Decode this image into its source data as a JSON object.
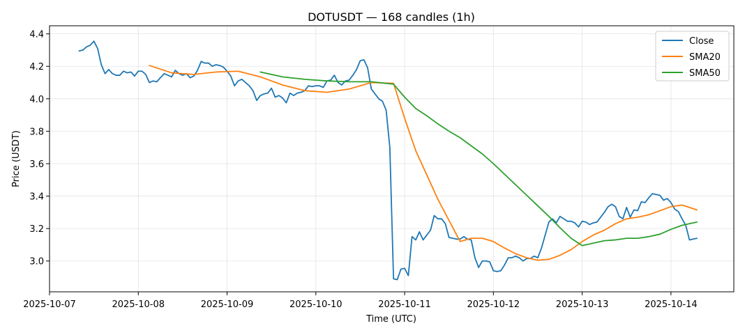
{
  "chart_data": {
    "type": "line",
    "title": "DOTUSDT — 168 candles (1h)",
    "xlabel": "Time (UTC)",
    "ylabel": "Price (USDT)",
    "ylim": [
      2.81,
      4.45
    ],
    "xlim": [
      "2025-10-07T00:00",
      "2025-10-14T17:00"
    ],
    "grid": true,
    "legend_position": "top-right",
    "x_ticks": [
      "2025-10-07",
      "2025-10-08",
      "2025-10-09",
      "2025-10-10",
      "2025-10-11",
      "2025-10-12",
      "2025-10-13",
      "2025-10-14"
    ],
    "y_ticks": [
      3.0,
      3.2,
      3.4,
      3.6,
      3.8,
      4.0,
      4.2,
      4.4
    ],
    "series": [
      {
        "name": "Close",
        "color": "#1f77b4",
        "x": [
          "2025-10-07T08:00",
          "2025-10-07T09:00",
          "2025-10-07T10:00",
          "2025-10-07T11:00",
          "2025-10-07T12:00",
          "2025-10-07T13:00",
          "2025-10-07T14:00",
          "2025-10-07T15:00",
          "2025-10-07T16:00",
          "2025-10-07T17:00",
          "2025-10-07T18:00",
          "2025-10-07T19:00",
          "2025-10-07T20:00",
          "2025-10-07T21:00",
          "2025-10-07T22:00",
          "2025-10-07T23:00",
          "2025-10-08T00:00",
          "2025-10-08T01:00",
          "2025-10-08T02:00",
          "2025-10-08T03:00",
          "2025-10-08T04:00",
          "2025-10-08T05:00",
          "2025-10-08T06:00",
          "2025-10-08T07:00",
          "2025-10-08T08:00",
          "2025-10-08T09:00",
          "2025-10-08T10:00",
          "2025-10-08T11:00",
          "2025-10-08T12:00",
          "2025-10-08T13:00",
          "2025-10-08T14:00",
          "2025-10-08T15:00",
          "2025-10-08T16:00",
          "2025-10-08T17:00",
          "2025-10-08T18:00",
          "2025-10-08T19:00",
          "2025-10-08T20:00",
          "2025-10-08T21:00",
          "2025-10-08T22:00",
          "2025-10-08T23:00",
          "2025-10-09T00:00",
          "2025-10-09T01:00",
          "2025-10-09T02:00",
          "2025-10-09T03:00",
          "2025-10-09T04:00",
          "2025-10-09T05:00",
          "2025-10-09T06:00",
          "2025-10-09T07:00",
          "2025-10-09T08:00",
          "2025-10-09T09:00",
          "2025-10-09T10:00",
          "2025-10-09T11:00",
          "2025-10-09T12:00",
          "2025-10-09T13:00",
          "2025-10-09T14:00",
          "2025-10-09T15:00",
          "2025-10-09T16:00",
          "2025-10-09T17:00",
          "2025-10-09T18:00",
          "2025-10-09T19:00",
          "2025-10-09T20:00",
          "2025-10-09T21:00",
          "2025-10-09T22:00",
          "2025-10-09T23:00",
          "2025-10-10T00:00",
          "2025-10-10T01:00",
          "2025-10-10T02:00",
          "2025-10-10T03:00",
          "2025-10-10T04:00",
          "2025-10-10T05:00",
          "2025-10-10T06:00",
          "2025-10-10T07:00",
          "2025-10-10T08:00",
          "2025-10-10T09:00",
          "2025-10-10T10:00",
          "2025-10-10T11:00",
          "2025-10-10T12:00",
          "2025-10-10T13:00",
          "2025-10-10T14:00",
          "2025-10-10T15:00",
          "2025-10-10T16:00",
          "2025-10-10T17:00",
          "2025-10-10T18:00",
          "2025-10-10T19:00",
          "2025-10-10T20:00",
          "2025-10-10T21:00",
          "2025-10-10T22:00",
          "2025-10-10T23:00",
          "2025-10-11T00:00",
          "2025-10-11T01:00",
          "2025-10-11T02:00",
          "2025-10-11T03:00",
          "2025-10-11T04:00",
          "2025-10-11T05:00",
          "2025-10-11T06:00",
          "2025-10-11T07:00",
          "2025-10-11T08:00",
          "2025-10-11T09:00",
          "2025-10-11T10:00",
          "2025-10-11T11:00",
          "2025-10-11T12:00",
          "2025-10-11T13:00",
          "2025-10-11T14:00",
          "2025-10-11T15:00",
          "2025-10-11T16:00",
          "2025-10-11T17:00",
          "2025-10-11T18:00",
          "2025-10-11T19:00",
          "2025-10-11T20:00",
          "2025-10-11T21:00",
          "2025-10-11T22:00",
          "2025-10-11T23:00",
          "2025-10-12T00:00",
          "2025-10-12T01:00",
          "2025-10-12T02:00",
          "2025-10-12T03:00",
          "2025-10-12T04:00",
          "2025-10-12T05:00",
          "2025-10-12T06:00",
          "2025-10-12T07:00",
          "2025-10-12T08:00",
          "2025-10-12T09:00",
          "2025-10-12T10:00",
          "2025-10-12T11:00",
          "2025-10-12T12:00",
          "2025-10-12T13:00",
          "2025-10-12T14:00",
          "2025-10-12T15:00",
          "2025-10-12T16:00",
          "2025-10-12T17:00",
          "2025-10-12T18:00",
          "2025-10-12T19:00",
          "2025-10-12T20:00",
          "2025-10-12T21:00",
          "2025-10-12T22:00",
          "2025-10-12T23:00",
          "2025-10-13T00:00",
          "2025-10-13T01:00",
          "2025-10-13T02:00",
          "2025-10-13T03:00",
          "2025-10-13T04:00",
          "2025-10-13T05:00",
          "2025-10-13T06:00",
          "2025-10-13T07:00",
          "2025-10-13T08:00",
          "2025-10-13T09:00",
          "2025-10-13T10:00",
          "2025-10-13T11:00",
          "2025-10-13T12:00",
          "2025-10-13T13:00",
          "2025-10-13T14:00",
          "2025-10-13T15:00",
          "2025-10-13T16:00",
          "2025-10-13T17:00",
          "2025-10-13T18:00",
          "2025-10-13T19:00",
          "2025-10-13T20:00",
          "2025-10-13T21:00",
          "2025-10-13T22:00",
          "2025-10-13T23:00",
          "2025-10-14T00:00",
          "2025-10-14T01:00",
          "2025-10-14T02:00",
          "2025-10-14T03:00",
          "2025-10-14T04:00",
          "2025-10-14T05:00",
          "2025-10-14T06:00",
          "2025-10-14T07:00"
        ],
        "values": [
          4.295,
          4.3,
          4.32,
          4.33,
          4.355,
          4.31,
          4.21,
          4.155,
          4.18,
          4.155,
          4.145,
          4.145,
          4.17,
          4.16,
          4.165,
          4.14,
          4.17,
          4.17,
          4.15,
          4.1,
          4.11,
          4.105,
          4.13,
          4.155,
          4.145,
          4.135,
          4.175,
          4.155,
          4.145,
          4.155,
          4.13,
          4.14,
          4.175,
          4.23,
          4.22,
          4.22,
          4.2,
          4.21,
          4.205,
          4.195,
          4.17,
          4.14,
          4.08,
          4.11,
          4.12,
          4.1,
          4.08,
          4.05,
          3.99,
          4.02,
          4.03,
          4.035,
          4.065,
          4.01,
          4.02,
          4.005,
          3.975,
          4.035,
          4.02,
          4.035,
          4.04,
          4.05,
          4.08,
          4.075,
          4.08,
          4.08,
          4.07,
          4.11,
          4.115,
          4.145,
          4.1,
          4.085,
          4.11,
          4.115,
          4.145,
          4.18,
          4.235,
          4.24,
          4.19,
          4.06,
          4.03,
          4.0,
          3.985,
          3.93,
          3.7,
          2.89,
          2.885,
          2.95,
          2.955,
          2.91,
          3.15,
          3.13,
          3.18,
          3.13,
          3.16,
          3.19,
          3.28,
          3.26,
          3.26,
          3.23,
          3.145,
          3.14,
          3.135,
          3.135,
          3.15,
          3.135,
          3.13,
          3.02,
          2.96,
          3.0,
          3.0,
          2.995,
          2.94,
          2.935,
          2.94,
          2.975,
          3.02,
          3.02,
          3.03,
          3.02,
          3.0,
          3.015,
          3.015,
          3.03,
          3.02,
          3.08,
          3.16,
          3.24,
          3.26,
          3.235,
          3.275,
          3.26,
          3.245,
          3.245,
          3.235,
          3.21,
          3.245,
          3.24,
          3.225,
          3.235,
          3.24,
          3.27,
          3.3,
          3.335,
          3.35,
          3.335,
          3.275,
          3.26,
          3.33,
          3.27,
          3.315,
          3.31,
          3.365,
          3.36,
          3.39,
          3.415,
          3.41,
          3.405,
          3.375,
          3.385,
          3.36,
          3.32,
          3.305,
          3.26,
          3.22,
          3.13,
          3.135,
          3.14
        ]
      },
      {
        "name": "SMA20",
        "color": "#ff7f0e",
        "x": [
          "2025-10-08T03:00",
          "2025-10-08T09:00",
          "2025-10-08T15:00",
          "2025-10-08T21:00",
          "2025-10-09T03:00",
          "2025-10-09T09:00",
          "2025-10-09T15:00",
          "2025-10-09T21:00",
          "2025-10-10T03:00",
          "2025-10-10T09:00",
          "2025-10-10T15:00",
          "2025-10-10T21:00",
          "2025-10-11T00:00",
          "2025-10-11T03:00",
          "2025-10-11T06:00",
          "2025-10-11T09:00",
          "2025-10-11T12:00",
          "2025-10-11T15:00",
          "2025-10-11T18:00",
          "2025-10-11T21:00",
          "2025-10-12T00:00",
          "2025-10-12T03:00",
          "2025-10-12T06:00",
          "2025-10-12T09:00",
          "2025-10-12T12:00",
          "2025-10-12T15:00",
          "2025-10-12T18:00",
          "2025-10-12T21:00",
          "2025-10-13T00:00",
          "2025-10-13T03:00",
          "2025-10-13T06:00",
          "2025-10-13T09:00",
          "2025-10-13T12:00",
          "2025-10-13T15:00",
          "2025-10-13T18:00",
          "2025-10-13T21:00",
          "2025-10-14T00:00",
          "2025-10-14T03:00",
          "2025-10-14T07:00"
        ],
        "values": [
          4.205,
          4.16,
          4.15,
          4.165,
          4.17,
          4.135,
          4.085,
          4.05,
          4.04,
          4.06,
          4.1,
          4.095,
          3.88,
          3.68,
          3.53,
          3.38,
          3.25,
          3.12,
          3.14,
          3.14,
          3.12,
          3.08,
          3.045,
          3.02,
          3.005,
          3.01,
          3.035,
          3.07,
          3.12,
          3.16,
          3.19,
          3.23,
          3.26,
          3.27,
          3.285,
          3.31,
          3.335,
          3.345,
          3.315
        ]
      },
      {
        "name": "SMA50",
        "color": "#2ca02c",
        "x": [
          "2025-10-09T09:00",
          "2025-10-09T15:00",
          "2025-10-09T21:00",
          "2025-10-10T03:00",
          "2025-10-10T09:00",
          "2025-10-10T15:00",
          "2025-10-10T21:00",
          "2025-10-11T00:00",
          "2025-10-11T03:00",
          "2025-10-11T06:00",
          "2025-10-11T09:00",
          "2025-10-11T12:00",
          "2025-10-11T15:00",
          "2025-10-11T18:00",
          "2025-10-11T21:00",
          "2025-10-12T00:00",
          "2025-10-12T03:00",
          "2025-10-12T06:00",
          "2025-10-12T09:00",
          "2025-10-12T12:00",
          "2025-10-12T15:00",
          "2025-10-12T18:00",
          "2025-10-12T21:00",
          "2025-10-13T00:00",
          "2025-10-13T03:00",
          "2025-10-13T06:00",
          "2025-10-13T09:00",
          "2025-10-13T12:00",
          "2025-10-13T15:00",
          "2025-10-13T18:00",
          "2025-10-13T21:00",
          "2025-10-14T00:00",
          "2025-10-14T03:00",
          "2025-10-14T07:00"
        ],
        "values": [
          4.165,
          4.135,
          4.12,
          4.11,
          4.105,
          4.105,
          4.09,
          4.01,
          3.94,
          3.895,
          3.845,
          3.8,
          3.76,
          3.71,
          3.66,
          3.6,
          3.535,
          3.47,
          3.405,
          3.34,
          3.275,
          3.205,
          3.14,
          3.095,
          3.11,
          3.125,
          3.13,
          3.14,
          3.14,
          3.15,
          3.165,
          3.195,
          3.22,
          3.24
        ]
      }
    ]
  }
}
